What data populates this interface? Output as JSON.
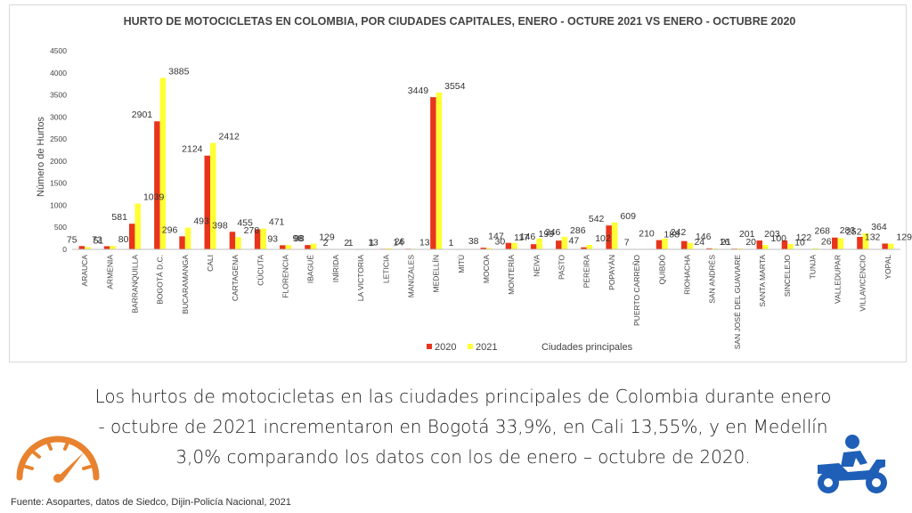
{
  "chart_data": {
    "type": "bar",
    "title": "HURTO DE MOTOCICLETAS EN COLOMBIA, POR CIUDADES CAPITALES, ENERO - OCTURE 2021 VS ENERO - OCTUBRE 2020",
    "ylabel": "Número de Hurtos",
    "xlabel": "Ciudades principales",
    "ylim": [
      0,
      4500
    ],
    "yticks": [
      0,
      500,
      1000,
      1500,
      2000,
      2500,
      3000,
      3500,
      4000,
      4500
    ],
    "grid": false,
    "legend_position": "bottom",
    "categories": [
      "ARAUCA",
      "ARMENIA",
      "BARRANQUILLA",
      "BOGOTÁ D.C.",
      "BUCARAMANGA",
      "CALI",
      "CARTAGENA",
      "CÚCUTA",
      "FLORENCIA",
      "IBAGUÉ",
      "INÍRIDA",
      "LA VICTORIA",
      "LETICIA",
      "MANIZALES",
      "MEDELLÍN",
      "MITÚ",
      "MOCOA",
      "MONTERÍA",
      "NEIVA",
      "PASTO",
      "PEREIRA",
      "POPAYÁN",
      "PUERTO CARREÑO",
      "QUIBDÓ",
      "RIOHACHA",
      "SAN ANDRÉS",
      "SAN JOSÉ DEL GUAVIARE",
      "SANTA MARTA",
      "SINCELEJO",
      "TUNJA",
      "VALLEDUPAR",
      "VILLAVICENCIO",
      "YOPAL"
    ],
    "series": [
      {
        "name": "2020",
        "color": "#e8341c",
        "values": [
          75,
          72,
          581,
          2901,
          296,
          2124,
          398,
          455,
          93,
          98,
          2,
          1,
          13,
          14,
          3449,
          1,
          38,
          147,
          117,
          199,
          47,
          542,
          7,
          210,
          188,
          24,
          16,
          201,
          203,
          10,
          268,
          283,
          132
        ]
      },
      {
        "name": "2021",
        "color": "#ffff33",
        "values": [
          51,
          80,
          1039,
          3885,
          493,
          2412,
          278,
          471,
          98,
          129,
          2,
          1,
          26,
          13,
          3554,
          null,
          30,
          146,
          246,
          286,
          102,
          609,
          null,
          242,
          146,
          21,
          20,
          100,
          122,
          26,
          252,
          364,
          129
        ]
      }
    ]
  },
  "caption": "Los hurtos de motocicletas en las ciudades principales de Colombia durante enero - octubre de 2021 incrementaron en Bogotá 33,9%, en Cali 13,55%, y en Medellín 3,0% comparando los datos con los de enero – octubre de 2020.",
  "source": "Fuente: Asopartes, datos de Siedco, Dijin-Policía Nacional, 2021",
  "icons": {
    "left": "speedometer-icon",
    "right": "motorcycle-rider-icon",
    "accent": "#e8822e",
    "blue": "#1f5fb8"
  }
}
